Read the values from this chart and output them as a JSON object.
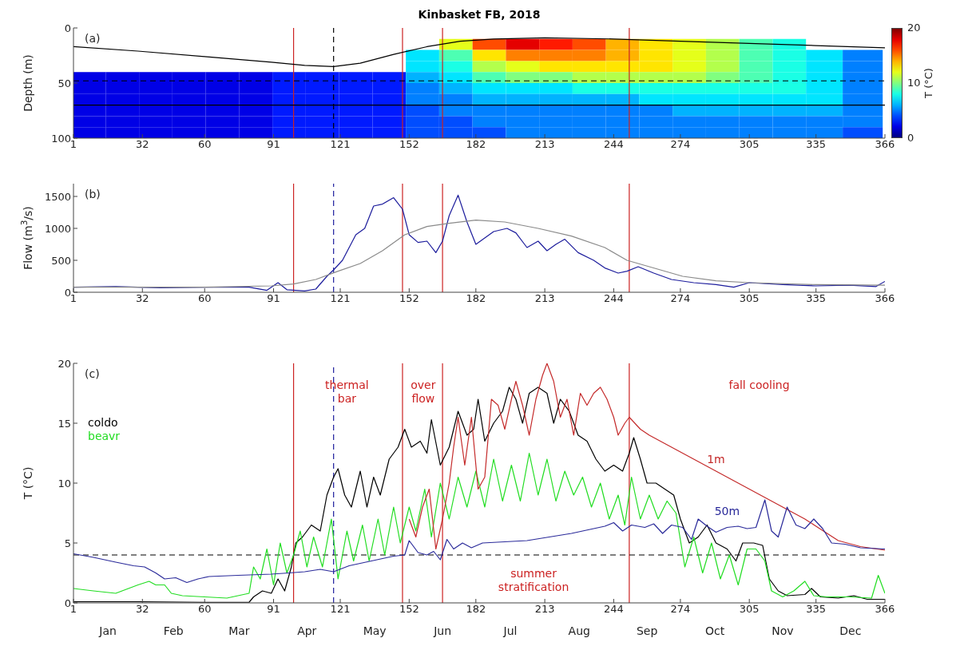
{
  "chart_data": [
    {
      "type": "heatmap",
      "title": "Kinbasket FB, 2018",
      "ylabel": "Depth (m)",
      "clabel": "T (°C)",
      "annotations": [
        "(a)"
      ],
      "x": [
        8,
        23,
        38,
        53,
        68,
        83,
        98,
        113,
        128,
        143,
        158,
        173,
        188,
        203,
        218,
        233,
        248,
        263,
        278,
        293,
        308,
        323,
        338,
        356
      ],
      "y": [
        15,
        25,
        35,
        45,
        55,
        65,
        75,
        85,
        95
      ],
      "cells": [
        [
          null,
          null,
          null,
          null,
          null,
          null,
          null,
          null,
          null,
          null,
          null,
          12,
          16,
          18,
          17,
          16,
          14,
          13,
          12,
          11,
          9,
          8,
          null,
          null
        ],
        [
          null,
          null,
          null,
          null,
          null,
          null,
          null,
          null,
          null,
          null,
          7,
          9,
          13,
          15,
          15,
          15,
          14,
          13,
          12,
          11,
          9,
          8,
          7,
          5
        ],
        [
          null,
          null,
          null,
          null,
          null,
          null,
          null,
          null,
          null,
          null,
          7,
          8,
          11,
          12,
          13,
          13,
          13,
          13,
          12,
          11,
          9,
          8,
          7,
          5
        ],
        [
          2,
          2,
          2,
          2,
          2,
          2,
          3,
          3,
          3,
          3,
          6,
          7,
          9,
          10,
          10,
          11,
          11,
          11,
          11,
          10,
          9,
          8,
          7,
          5
        ],
        [
          2,
          2,
          2,
          2,
          2,
          2,
          3,
          3,
          3,
          3,
          5,
          6,
          7,
          7,
          7,
          8,
          8,
          8,
          8,
          8,
          8,
          8,
          7,
          5
        ],
        [
          2,
          2,
          2,
          2,
          2,
          2,
          3,
          3,
          3,
          3,
          5,
          5,
          6,
          6,
          6,
          6,
          6,
          7,
          7,
          7,
          7,
          7,
          7,
          5
        ],
        [
          2,
          2,
          2,
          2,
          2,
          2,
          3,
          3,
          3,
          3,
          4,
          5,
          5,
          5,
          5,
          5,
          5,
          5,
          6,
          6,
          6,
          6,
          6,
          5
        ],
        [
          2,
          2,
          2,
          2,
          2,
          2,
          3,
          3,
          3,
          3,
          4,
          4,
          5,
          5,
          5,
          5,
          5,
          5,
          5,
          5,
          5,
          5,
          5,
          5
        ],
        [
          2,
          2,
          2,
          2,
          2,
          2,
          3,
          3,
          3,
          3,
          4,
          4,
          4,
          5,
          5,
          5,
          5,
          5,
          5,
          5,
          5,
          5,
          5,
          4
        ]
      ],
      "series": [
        {
          "type": "line",
          "color": "#000000",
          "x": [
            1,
            30,
            60,
            90,
            105,
            118,
            130,
            145,
            160,
            175,
            190,
            213,
            244,
            274,
            305,
            335,
            366
          ],
          "values": [
            17,
            21,
            26,
            31,
            34,
            35,
            32,
            24,
            17,
            12,
            10,
            9,
            10,
            12,
            14,
            16,
            18
          ]
        }
      ],
      "clim": [
        0,
        20
      ],
      "cticks": [
        0,
        10,
        20
      ],
      "xlim": [
        1,
        366
      ],
      "xticks": [
        1,
        32,
        60,
        91,
        121,
        152,
        182,
        213,
        244,
        274,
        305,
        335,
        366
      ],
      "ylim": [
        100,
        0
      ],
      "yticks": [
        0,
        50,
        100
      ],
      "ref_lines": [
        {
          "axis": "x",
          "value": 100,
          "color": "#cc2222"
        },
        {
          "axis": "x",
          "value": 149,
          "color": "#cc2222"
        },
        {
          "axis": "x",
          "value": 167,
          "color": "#cc2222"
        },
        {
          "axis": "x",
          "value": 251,
          "color": "#cc2222"
        },
        {
          "axis": "x",
          "value": 118,
          "color": "#000000",
          "line_style": "dashed"
        },
        {
          "axis": "y",
          "value": 48,
          "color": "#000000",
          "line_style": "dashed"
        },
        {
          "axis": "y",
          "value": 70,
          "color": "#000000",
          "line_style": "solid"
        }
      ]
    },
    {
      "type": "line",
      "ylabel": "Flow (m$^{3}$/s)",
      "annotations": [
        "(b)"
      ],
      "marker": "none",
      "line_style": "solid",
      "series": [
        {
          "color": "#1c1c9c",
          "x": [
            1,
            20,
            40,
            60,
            80,
            88,
            93,
            97,
            105,
            110,
            115,
            118,
            122,
            128,
            132,
            136,
            140,
            145,
            149,
            152,
            156,
            160,
            164,
            167,
            170,
            174,
            178,
            182,
            186,
            190,
            196,
            200,
            205,
            210,
            214,
            218,
            222,
            228,
            235,
            240,
            246,
            250,
            255,
            262,
            270,
            280,
            290,
            298,
            305,
            320,
            335,
            350,
            362,
            366
          ],
          "values": [
            80,
            90,
            70,
            80,
            80,
            30,
            150,
            40,
            20,
            50,
            250,
            350,
            500,
            900,
            1000,
            1350,
            1380,
            1480,
            1300,
            900,
            780,
            800,
            620,
            800,
            1200,
            1520,
            1100,
            750,
            850,
            950,
            1000,
            930,
            700,
            800,
            650,
            750,
            830,
            620,
            500,
            380,
            300,
            330,
            400,
            300,
            200,
            150,
            120,
            80,
            150,
            120,
            100,
            110,
            90,
            170
          ]
        },
        {
          "color": "#8a8a8a",
          "x": [
            1,
            60,
            90,
            100,
            110,
            120,
            130,
            140,
            150,
            160,
            170,
            182,
            195,
            210,
            225,
            240,
            250,
            260,
            275,
            290,
            305,
            335,
            366
          ],
          "values": [
            80,
            80,
            100,
            130,
            200,
            330,
            450,
            650,
            900,
            1030,
            1080,
            1130,
            1100,
            1000,
            880,
            700,
            500,
            400,
            250,
            180,
            150,
            120,
            110
          ]
        }
      ],
      "xlim": [
        1,
        366
      ],
      "xticks": [
        1,
        32,
        60,
        91,
        121,
        152,
        182,
        213,
        244,
        274,
        305,
        335,
        366
      ],
      "ylim": [
        0,
        1700
      ],
      "yticks": [
        0,
        500,
        1000,
        1500
      ],
      "ref_lines": [
        {
          "axis": "x",
          "value": 100,
          "color": "#cc2222"
        },
        {
          "axis": "x",
          "value": 149,
          "color": "#cc2222"
        },
        {
          "axis": "x",
          "value": 167,
          "color": "#cc2222"
        },
        {
          "axis": "x",
          "value": 251,
          "color": "#cc2222"
        },
        {
          "axis": "x",
          "value": 118,
          "color": "#1c1c9c",
          "line_style": "dashed"
        }
      ]
    },
    {
      "type": "line",
      "ylabel": "T (°C)",
      "marker": "none",
      "line_style": "solid",
      "legend": "left",
      "annotations": [
        "(c)",
        "thermal\nbar",
        "over\nflow",
        "summer\nstratification",
        "fall cooling",
        "Jan",
        "Feb",
        "Mar",
        "Apr",
        "May",
        "Jun",
        "Jul",
        "Aug",
        "Sep",
        "Oct",
        "Nov",
        "Dec"
      ],
      "series": [
        {
          "name": "coldo",
          "color": "#000000",
          "x": [
            1,
            30,
            60,
            80,
            82,
            86,
            90,
            93,
            96,
            99,
            101,
            104,
            108,
            112,
            115,
            118,
            120,
            123,
            126,
            130,
            133,
            136,
            139,
            143,
            147,
            150,
            153,
            157,
            160,
            162,
            166,
            170,
            174,
            178,
            181,
            183,
            186,
            190,
            194,
            197,
            200,
            203,
            206,
            210,
            214,
            217,
            220,
            224,
            228,
            232,
            236,
            240,
            244,
            248,
            251,
            253,
            256,
            259,
            263,
            267,
            271,
            274,
            278,
            282,
            286,
            290,
            295,
            299,
            302,
            307,
            311,
            314,
            318,
            322,
            330,
            333,
            337,
            345,
            352,
            358,
            366
          ],
          "values": [
            0.1,
            0.1,
            0.05,
            0.05,
            0.5,
            1,
            0.8,
            2,
            1,
            3,
            5,
            5.5,
            6.5,
            6,
            9,
            10.5,
            11.2,
            9,
            8,
            11,
            8,
            10.5,
            9,
            12,
            13,
            14.5,
            13,
            13.5,
            12.5,
            15.3,
            11.5,
            13,
            16,
            14,
            14.5,
            17,
            13.5,
            15,
            16,
            18,
            17,
            15,
            17.5,
            18,
            17.5,
            15,
            17,
            16,
            14,
            13.5,
            12,
            11,
            11.5,
            11,
            12.5,
            13.8,
            12,
            10,
            10,
            9.5,
            9,
            7,
            5,
            5.5,
            6.5,
            5,
            4.5,
            3.5,
            5,
            5,
            4.8,
            2,
            1,
            0.6,
            0.7,
            1.2,
            0.5,
            0.4,
            0.6,
            0.3,
            0.3
          ]
        },
        {
          "name": "beavr",
          "color": "#22dd22",
          "x": [
            1,
            10,
            20,
            30,
            35,
            38,
            42,
            45,
            50,
            60,
            70,
            80,
            82,
            85,
            88,
            91,
            94,
            97,
            100,
            103,
            106,
            109,
            113,
            117,
            120,
            124,
            127,
            131,
            134,
            138,
            141,
            145,
            148,
            152,
            155,
            159,
            162,
            166,
            170,
            174,
            178,
            182,
            186,
            190,
            194,
            198,
            202,
            206,
            210,
            214,
            218,
            222,
            226,
            230,
            234,
            238,
            242,
            246,
            249,
            252,
            256,
            260,
            264,
            268,
            272,
            276,
            280,
            284,
            288,
            292,
            296,
            300,
            304,
            308,
            312,
            315,
            320,
            325,
            330,
            334,
            340,
            350,
            360,
            363,
            366
          ],
          "values": [
            1.2,
            1,
            0.8,
            1.5,
            1.8,
            1.5,
            1.5,
            0.8,
            0.6,
            0.5,
            0.4,
            0.8,
            3,
            2,
            4.5,
            1.5,
            5,
            2.5,
            4,
            6,
            3,
            5.5,
            3,
            7,
            2,
            6,
            3.5,
            6.5,
            3.5,
            7,
            4,
            8,
            5,
            8,
            6,
            9.5,
            5.5,
            10,
            7,
            10.5,
            8,
            11,
            8,
            12,
            8.5,
            11.5,
            8.5,
            12.5,
            9,
            12,
            8.5,
            11,
            9,
            10.5,
            8,
            10,
            7,
            9,
            6.5,
            10.5,
            7,
            9,
            7,
            8.5,
            7.5,
            3,
            5.5,
            2.5,
            5,
            2,
            4,
            1.5,
            4.5,
            4.5,
            3.5,
            1,
            0.5,
            1,
            1.8,
            0.6,
            0.5,
            0.5,
            0.4,
            2.3,
            0.8
          ]
        },
        {
          "name": "1m",
          "color": "#c42a2a",
          "x": [
            152,
            155,
            158,
            161,
            164,
            167,
            170,
            172,
            174,
            177,
            180,
            183,
            186,
            189,
            192,
            195,
            198,
            200,
            203,
            206,
            209,
            212,
            214,
            217,
            220,
            223,
            226,
            229,
            232,
            235,
            238,
            241,
            244,
            246,
            249,
            251,
            256,
            260,
            270,
            280,
            290,
            300,
            310,
            320,
            330,
            335,
            345,
            355,
            366
          ],
          "values": [
            7,
            5.5,
            8,
            9.5,
            4.5,
            7,
            10,
            13,
            15.5,
            11.5,
            15.5,
            9.5,
            10.5,
            17,
            16.5,
            14.5,
            17,
            18.5,
            16.5,
            14,
            17,
            19,
            20,
            18.5,
            15.5,
            17,
            14,
            17.5,
            16.5,
            17.5,
            18,
            17,
            15.5,
            14,
            15,
            15.5,
            14.5,
            14,
            13,
            12,
            11,
            10,
            9,
            8,
            7,
            6.4,
            5.2,
            4.7,
            4.4
          ]
        },
        {
          "name": "50m",
          "color": "#2a2a9a",
          "x": [
            1,
            10,
            20,
            28,
            33,
            38,
            42,
            47,
            52,
            57,
            62,
            75,
            90,
            98,
            105,
            112,
            118,
            125,
            135,
            145,
            150,
            152,
            156,
            160,
            163,
            166,
            169,
            172,
            176,
            180,
            185,
            195,
            205,
            215,
            225,
            235,
            240,
            244,
            248,
            252,
            258,
            262,
            266,
            270,
            275,
            279,
            282,
            286,
            290,
            295,
            300,
            304,
            308,
            312,
            315,
            318,
            322,
            326,
            330,
            334,
            338,
            342,
            348,
            355,
            366
          ],
          "values": [
            4.1,
            3.8,
            3.4,
            3.1,
            3,
            2.5,
            2,
            2.1,
            1.7,
            2,
            2.2,
            2.3,
            2.4,
            2.5,
            2.6,
            2.8,
            2.6,
            3.1,
            3.5,
            3.9,
            4,
            5.2,
            4.2,
            4,
            4.3,
            3.6,
            5.3,
            4.5,
            5,
            4.6,
            5,
            5.1,
            5.2,
            5.5,
            5.8,
            6.2,
            6.4,
            6.7,
            6,
            6.5,
            6.3,
            6.6,
            5.8,
            6.5,
            6.3,
            5.3,
            7,
            6.4,
            5.9,
            6.3,
            6.4,
            6.2,
            6.3,
            8.6,
            6,
            5.5,
            8,
            6.5,
            6.2,
            7,
            6.2,
            5,
            4.9,
            4.6,
            4.5
          ]
        }
      ],
      "xlim": [
        1,
        366
      ],
      "xticks": [
        1,
        32,
        60,
        91,
        121,
        152,
        182,
        213,
        244,
        274,
        305,
        335,
        366
      ],
      "ylim": [
        0,
        20
      ],
      "yticks": [
        0,
        5,
        10,
        15,
        20
      ],
      "ref_lines": [
        {
          "axis": "x",
          "value": 100,
          "color": "#cc2222"
        },
        {
          "axis": "x",
          "value": 149,
          "color": "#cc2222"
        },
        {
          "axis": "x",
          "value": 167,
          "color": "#cc2222"
        },
        {
          "axis": "x",
          "value": 251,
          "color": "#cc2222"
        },
        {
          "axis": "x",
          "value": 118,
          "color": "#1c1c9c",
          "line_style": "dashed"
        },
        {
          "axis": "y",
          "value": 4,
          "color": "#000000",
          "line_style": "dashed"
        }
      ]
    }
  ]
}
